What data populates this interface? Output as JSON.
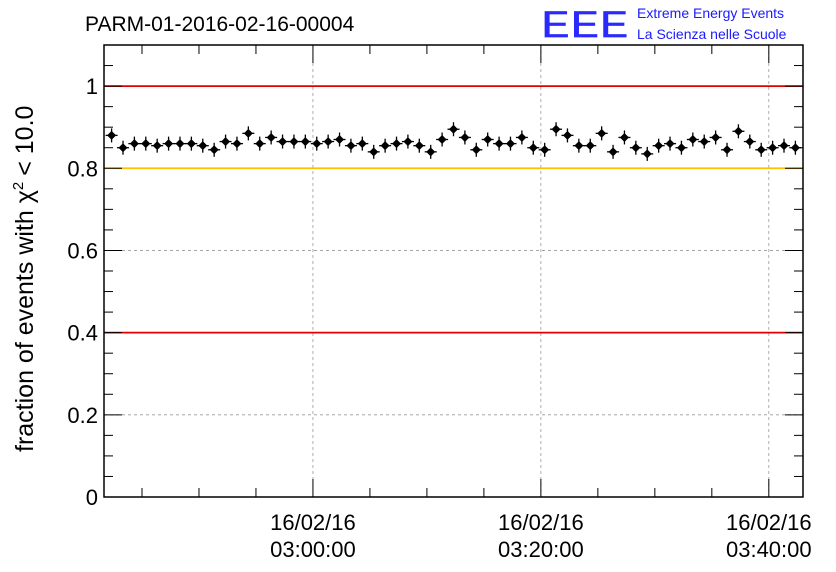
{
  "chart_data": {
    "type": "scatter",
    "title": "PARM-01-2016-02-16-00004",
    "ylabel": "fraction of events with",
    "ylabel_symbol": "χ",
    "ylabel_exponent": "2",
    "ylabel_condition": "< 10.0",
    "xlabel": "",
    "logo": {
      "mark": "EEE",
      "line1": "Extreme Energy Events",
      "line2": "La Scienza nelle Scuole",
      "color": "#1a1aff"
    },
    "xlim": [
      "02:41:40",
      "03:43:00"
    ],
    "ylim": [
      0,
      1.1
    ],
    "y_ticks": [
      0,
      0.2,
      0.4,
      0.6,
      0.8,
      1
    ],
    "y_tick_labels": [
      "0",
      "0.2",
      "0.4",
      "0.6",
      "0.8",
      "1"
    ],
    "x_ticks": [
      "03:00:00",
      "03:20:00",
      "03:40:00"
    ],
    "x_tick_labels": [
      {
        "date": "16/02/16",
        "time": "03:00:00"
      },
      {
        "date": "16/02/16",
        "time": "03:20:00"
      },
      {
        "date": "16/02/16",
        "time": "03:40:00"
      }
    ],
    "reference_lines": [
      {
        "y": 1.0,
        "color": "#e00000"
      },
      {
        "y": 0.8,
        "color": "#ffc000"
      },
      {
        "y": 0.4,
        "color": "#e00000"
      }
    ],
    "grid": true,
    "marker_color": "#000000",
    "series": [
      {
        "x": [
          "02:42:20",
          "02:43:20",
          "02:44:20",
          "02:45:20",
          "02:46:20",
          "02:47:20",
          "02:48:20",
          "02:49:20",
          "02:50:20",
          "02:51:20",
          "02:52:20",
          "02:53:20",
          "02:54:20",
          "02:55:20",
          "02:56:20",
          "02:57:20",
          "02:58:20",
          "02:59:20",
          "03:00:20",
          "03:01:20",
          "03:02:20",
          "03:03:20",
          "03:04:20",
          "03:05:20",
          "03:06:20",
          "03:07:20",
          "03:08:20",
          "03:09:20",
          "03:10:20",
          "03:11:20",
          "03:12:20",
          "03:13:20",
          "03:14:20",
          "03:15:20",
          "03:16:20",
          "03:17:20",
          "03:18:20",
          "03:19:20",
          "03:20:20",
          "03:21:20",
          "03:22:20",
          "03:23:20",
          "03:24:20",
          "03:25:20",
          "03:26:20",
          "03:27:20",
          "03:28:20",
          "03:29:20",
          "03:30:20",
          "03:31:20",
          "03:32:20",
          "03:33:20",
          "03:34:20",
          "03:35:20",
          "03:36:20",
          "03:37:20",
          "03:38:20",
          "03:39:20",
          "03:40:20",
          "03:41:20",
          "03:42:20"
        ],
        "y": [
          0.88,
          0.85,
          0.86,
          0.86,
          0.855,
          0.86,
          0.86,
          0.86,
          0.855,
          0.845,
          0.865,
          0.86,
          0.885,
          0.86,
          0.875,
          0.865,
          0.865,
          0.865,
          0.86,
          0.865,
          0.87,
          0.855,
          0.86,
          0.84,
          0.855,
          0.86,
          0.865,
          0.855,
          0.84,
          0.87,
          0.895,
          0.875,
          0.845,
          0.87,
          0.86,
          0.86,
          0.875,
          0.85,
          0.845,
          0.895,
          0.88,
          0.855,
          0.855,
          0.885,
          0.84,
          0.875,
          0.85,
          0.835,
          0.855,
          0.86,
          0.85,
          0.87,
          0.865,
          0.875,
          0.845,
          0.89,
          0.865,
          0.845,
          0.85,
          0.855,
          0.85
        ]
      }
    ]
  }
}
